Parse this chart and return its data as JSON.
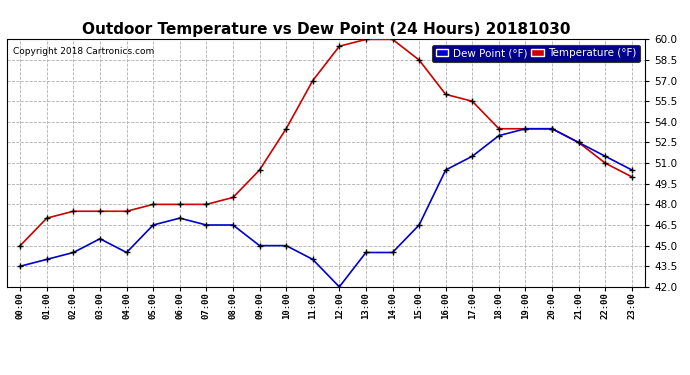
{
  "title": "Outdoor Temperature vs Dew Point (24 Hours) 20181030",
  "copyright": "Copyright 2018 Cartronics.com",
  "hours": [
    "00:00",
    "01:00",
    "02:00",
    "03:00",
    "04:00",
    "05:00",
    "06:00",
    "07:00",
    "08:00",
    "09:00",
    "10:00",
    "11:00",
    "12:00",
    "13:00",
    "14:00",
    "15:00",
    "16:00",
    "17:00",
    "18:00",
    "19:00",
    "20:00",
    "21:00",
    "22:00",
    "23:00"
  ],
  "temperature": [
    45.0,
    47.0,
    47.5,
    47.5,
    47.5,
    48.0,
    48.0,
    48.0,
    48.5,
    50.5,
    53.5,
    57.0,
    59.5,
    60.0,
    60.0,
    58.5,
    56.0,
    55.5,
    53.5,
    53.5,
    53.5,
    52.5,
    51.0,
    50.0
  ],
  "dew_point": [
    43.5,
    44.0,
    44.5,
    45.5,
    44.5,
    46.5,
    47.0,
    46.5,
    46.5,
    45.0,
    45.0,
    44.0,
    42.0,
    44.5,
    44.5,
    46.5,
    50.5,
    51.5,
    53.0,
    53.5,
    53.5,
    52.5,
    51.5,
    50.5
  ],
  "temp_color": "#cc0000",
  "dew_color": "#0000cc",
  "bg_color": "#ffffff",
  "plot_bg": "#ffffff",
  "grid_color": "#b0b0b0",
  "ylim": [
    42.0,
    60.0
  ],
  "yticks": [
    42.0,
    43.5,
    45.0,
    46.5,
    48.0,
    49.5,
    51.0,
    52.5,
    54.0,
    55.5,
    57.0,
    58.5,
    60.0
  ],
  "title_fontsize": 11,
  "marker": "+",
  "marker_color": "#000000",
  "marker_size": 5,
  "line_width": 1.2
}
